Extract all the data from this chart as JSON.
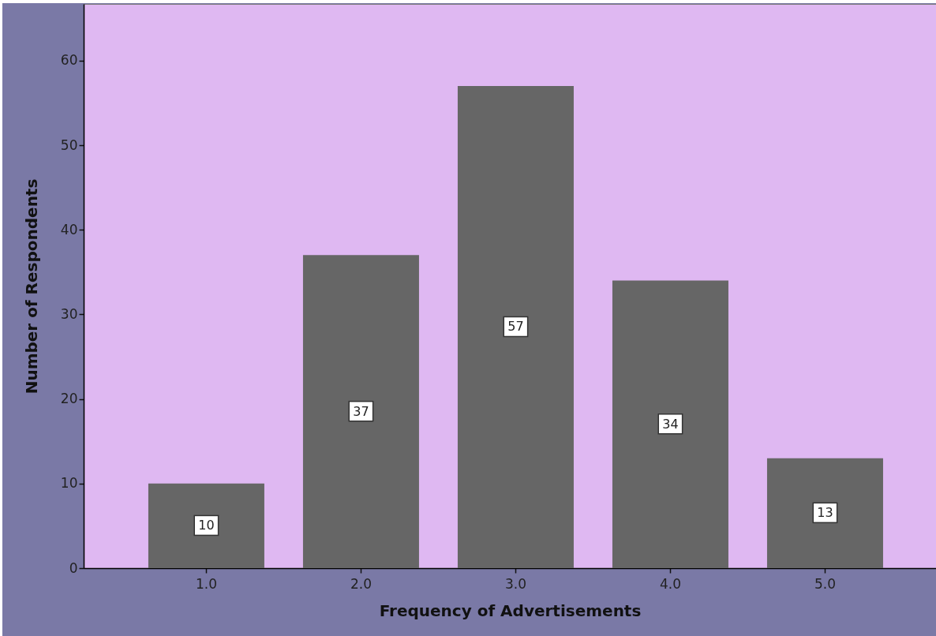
{
  "chart_data": {
    "type": "bar",
    "xlabel": "Frequency of Advertisements",
    "ylabel": "Number of Respondents",
    "categories": [
      "1.0",
      "2.0",
      "3.0",
      "4.0",
      "5.0"
    ],
    "values": [
      10,
      37,
      57,
      34,
      13
    ],
    "color": "#666666",
    "ylim": [
      0,
      66.7
    ],
    "yticks": [
      0,
      10,
      20,
      30,
      40,
      50,
      60
    ],
    "data_labels": true
  }
}
